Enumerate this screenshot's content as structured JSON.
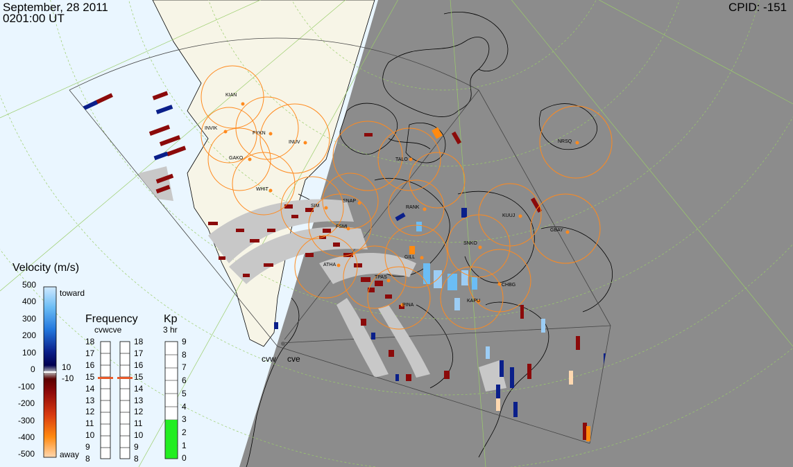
{
  "header": {
    "date": "September, 28 2011",
    "time": "0201:00 UT",
    "cpid": "CPID:  -151"
  },
  "colors": {
    "sunlit_bg": "#eaf6ff",
    "night_bg": "#8c8c8c",
    "land_sunlit": "#f7f5e7",
    "fov_circle": "#ff8a1e",
    "ground_scatter": "#c8c8c8",
    "kp_bar": "#22ee22",
    "freq_marker": "#e85a2a"
  },
  "velocity_scale": {
    "title": "Velocity (m/s)",
    "ticks": [
      "500",
      "400",
      "300",
      "200",
      "100",
      "0",
      "-100",
      "-200",
      "-300",
      "-400",
      "-500"
    ],
    "toward_label": "toward",
    "away_label": "away",
    "mid_labels": [
      "10",
      "-10"
    ]
  },
  "frequency_panel": {
    "title": "Frequency",
    "subtitle": "cvwcve",
    "ticks": [
      "18",
      "17",
      "16",
      "15",
      "14",
      "13",
      "12",
      "11",
      "10",
      "9",
      "8"
    ],
    "cvw_value": 15,
    "cve_value": 15
  },
  "kp_panel": {
    "title": "Kp",
    "subtitle": "3 hr",
    "ticks": [
      "9",
      "8",
      "7",
      "6",
      "5",
      "4",
      "3",
      "2",
      "1",
      "0"
    ],
    "value": 3
  },
  "radars": [
    {
      "code": "KIAN",
      "icon": "radar-site-dot"
    },
    {
      "code": "INVIK",
      "icon": "radar-site-dot"
    },
    {
      "code": "FYKN",
      "icon": "radar-site-dot"
    },
    {
      "code": "GAKO",
      "icon": "radar-site-dot"
    },
    {
      "code": "INUV",
      "icon": "radar-site-dot"
    },
    {
      "code": "WHIT",
      "icon": "radar-site-dot"
    },
    {
      "code": "SIM",
      "icon": "radar-site-dot"
    },
    {
      "code": "SNAP",
      "icon": "radar-site-dot"
    },
    {
      "code": "FSMI",
      "icon": "radar-site-dot"
    },
    {
      "code": "ATHA",
      "icon": "radar-site-dot"
    },
    {
      "code": "TPAS",
      "icon": "radar-site-dot"
    },
    {
      "code": "PINA",
      "icon": "radar-site-dot"
    },
    {
      "code": "GILL",
      "icon": "radar-site-dot"
    },
    {
      "code": "RANK",
      "icon": "radar-site-dot"
    },
    {
      "code": "KAPU",
      "icon": "radar-site-dot"
    },
    {
      "code": "CHBG",
      "icon": "radar-site-dot"
    },
    {
      "code": "SNKO",
      "icon": "radar-site-dot"
    },
    {
      "code": "KUUJ",
      "icon": "radar-site-dot"
    },
    {
      "code": "GBAY",
      "icon": "radar-site-dot"
    },
    {
      "code": "NRSQ",
      "icon": "radar-site-dot"
    },
    {
      "code": "TALO",
      "icon": "radar-site-dot"
    }
  ],
  "map_labels": {
    "cvw": "cvw",
    "cve": "cve"
  }
}
